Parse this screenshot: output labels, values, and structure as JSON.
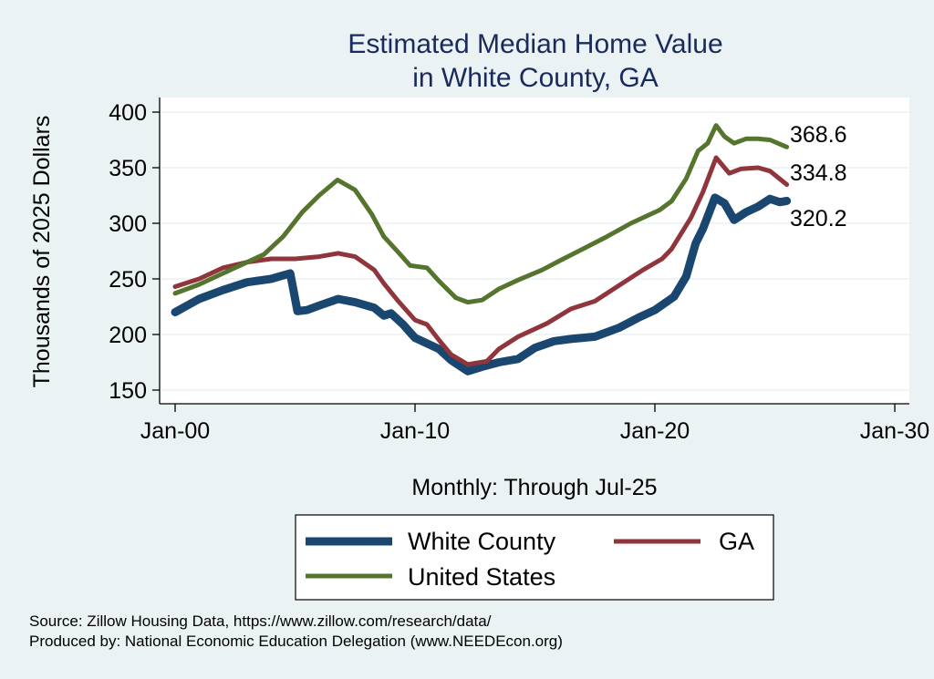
{
  "chart_data": {
    "type": "line",
    "title": [
      "Estimated Median Home Value",
      "in White County, GA"
    ],
    "xlabel": "Monthly: Through Jul-25",
    "ylabel": "Thousands of 2025 Dollars",
    "xlim": [
      2000,
      2030
    ],
    "ylim": [
      150,
      400
    ],
    "x_ticks": [
      {
        "value": 2000,
        "label": "Jan-00"
      },
      {
        "value": 2010,
        "label": "Jan-10"
      },
      {
        "value": 2020,
        "label": "Jan-20"
      },
      {
        "value": 2030,
        "label": "Jan-30"
      }
    ],
    "y_ticks": [
      {
        "value": 150,
        "label": "150"
      },
      {
        "value": 200,
        "label": "200"
      },
      {
        "value": 250,
        "label": "250"
      },
      {
        "value": 300,
        "label": "300"
      },
      {
        "value": 350,
        "label": "350"
      },
      {
        "value": 400,
        "label": "400"
      }
    ],
    "grid": true,
    "legend_position": "bottom",
    "series": [
      {
        "name": "White County",
        "color": "#1a476f",
        "end_label": "320.2",
        "x": [
          2000.0,
          2001.0,
          2002.0,
          2003.0,
          2004.0,
          2004.8,
          2005.1,
          2005.5,
          2006.0,
          2006.8,
          2007.5,
          2008.3,
          2008.7,
          2009.0,
          2009.5,
          2010.0,
          2011.0,
          2011.5,
          2012.2,
          2012.8,
          2013.5,
          2014.3,
          2015.0,
          2015.8,
          2016.5,
          2017.5,
          2018.5,
          2019.3,
          2020.0,
          2020.8,
          2021.3,
          2021.7,
          2022.0,
          2022.5,
          2022.9,
          2023.3,
          2023.8,
          2024.3,
          2024.8,
          2025.2,
          2025.5
        ],
        "values": [
          220,
          232,
          240,
          247,
          250,
          255,
          221,
          222,
          226,
          232,
          229,
          224,
          217,
          219,
          209,
          197,
          187,
          177,
          167,
          171,
          175,
          178,
          188,
          194,
          196,
          198,
          206,
          215,
          222,
          234,
          252,
          282,
          295,
          323,
          318,
          303,
          310,
          315,
          322,
          319,
          320.2
        ]
      },
      {
        "name": "GA",
        "color": "#90353b",
        "end_label": "334.8",
        "x": [
          2000.0,
          2001.0,
          2002.0,
          2003.0,
          2004.0,
          2005.0,
          2006.0,
          2006.8,
          2007.5,
          2008.3,
          2008.7,
          2009.3,
          2010.0,
          2010.5,
          2011.0,
          2011.5,
          2012.2,
          2013.0,
          2013.5,
          2014.3,
          2015.5,
          2016.5,
          2017.5,
          2018.5,
          2019.5,
          2020.3,
          2020.7,
          2021.5,
          2022.0,
          2022.55,
          2023.1,
          2023.6,
          2024.3,
          2024.8,
          2025.5
        ],
        "values": [
          243,
          250,
          260,
          265,
          268,
          268,
          270,
          273,
          270,
          258,
          246,
          230,
          213,
          209,
          195,
          182,
          173,
          176,
          187,
          198,
          210,
          223,
          230,
          244,
          258,
          268,
          277,
          305,
          328,
          359,
          345,
          349,
          350,
          347,
          334.8
        ]
      },
      {
        "name": "United States",
        "color": "#55752f",
        "end_label": "368.6",
        "x": [
          2000.0,
          2001.0,
          2002.0,
          2003.0,
          2003.7,
          2004.5,
          2005.3,
          2006.0,
          2006.77,
          2007.5,
          2008.2,
          2008.7,
          2009.3,
          2009.8,
          2010.5,
          2011.0,
          2011.7,
          2012.2,
          2012.8,
          2013.5,
          2014.3,
          2015.3,
          2016.0,
          2017.0,
          2018.0,
          2019.0,
          2020.2,
          2020.7,
          2021.3,
          2021.8,
          2022.2,
          2022.55,
          2022.9,
          2023.3,
          2023.8,
          2024.3,
          2024.8,
          2025.5
        ],
        "values": [
          237,
          245,
          255,
          265,
          272,
          288,
          310,
          325,
          339,
          330,
          308,
          288,
          274,
          262,
          260,
          248,
          233,
          229,
          231,
          241,
          249,
          258,
          266,
          277,
          288,
          300,
          312,
          320,
          340,
          365,
          372,
          388,
          378,
          372,
          376,
          376,
          375,
          368.6
        ]
      }
    ]
  },
  "legend": {
    "items": [
      {
        "label": "White County"
      },
      {
        "label": "GA"
      },
      {
        "label": "United States"
      }
    ]
  },
  "notes": {
    "source": "Source: Zillow Housing Data, https://www.zillow.com/research/data/",
    "produced_by": "Produced by: National Economic Education Delegation (www.NEEDEcon.org)"
  }
}
